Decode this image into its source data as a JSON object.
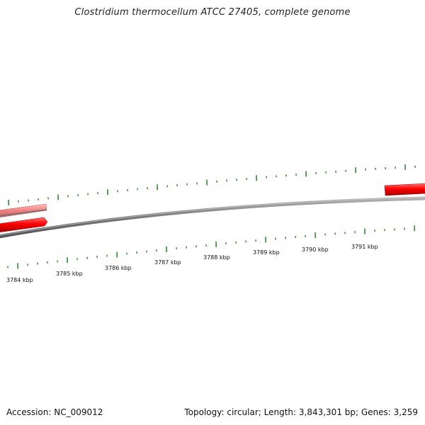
{
  "title": "Clostridium thermocellum ATCC 27405, complete genome",
  "footer": {
    "accession": "Accession: NC_009012",
    "summary": "Topology: circular; Length: 3,843,301 bp; Genes: 3,259"
  },
  "axis": {
    "labels": [
      "3784 kbp",
      "3785 kbp",
      "3786 kbp",
      "3787 kbp",
      "3788 kbp",
      "3789 kbp",
      "3790 kbp",
      "3791 kbp"
    ]
  },
  "features": [
    {
      "name": "gene-reverse-light",
      "strand": "reverse",
      "color": "#f08080"
    },
    {
      "name": "gene-forward-left",
      "strand": "forward",
      "color": "#ff0000"
    },
    {
      "name": "gene-forward-right",
      "strand": "forward",
      "color": "#ff0000"
    }
  ],
  "colors": {
    "backbone": "#808080",
    "tick": "#2e8b2e",
    "gene_forward": "#ff0000",
    "gene_reverse": "#f08080"
  }
}
